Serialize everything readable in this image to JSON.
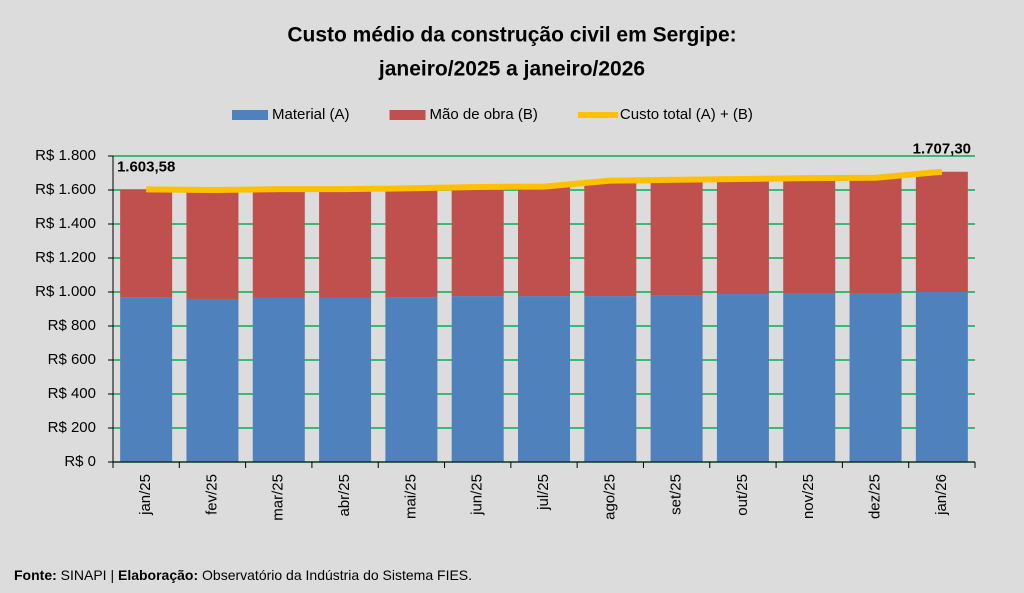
{
  "chart_data": {
    "type": "bar",
    "stacked": true,
    "title": [
      "Custo médio da construção civil em Sergipe:",
      "janeiro/2025 a janeiro/2026"
    ],
    "categories": [
      "jan/25",
      "fev/25",
      "mar/25",
      "abr/25",
      "mai/25",
      "jun/25",
      "jul/25",
      "ago/25",
      "set/25",
      "out/25",
      "nov/25",
      "dez/25",
      "jan/26"
    ],
    "series": [
      {
        "name": "Material (A)",
        "type": "bar",
        "color": "#4f81bd",
        "values": [
          970,
          959,
          965,
          965,
          970,
          976,
          976,
          976,
          982,
          988,
          994,
          994,
          1000
        ]
      },
      {
        "name": "Mão de obra (B)",
        "type": "bar",
        "color": "#c0504d",
        "values": [
          633.58,
          641,
          640,
          640,
          640,
          642,
          644,
          679,
          678,
          677,
          676,
          678,
          707.3
        ]
      },
      {
        "name": "Custo total (A) + (B)",
        "type": "line",
        "color": "#ffc000",
        "values": [
          1603.58,
          1600,
          1605,
          1605,
          1610,
          1618,
          1620,
          1655,
          1660,
          1665,
          1670,
          1672,
          1707.3
        ],
        "value_labels": [
          "1.603,58",
          null,
          null,
          null,
          null,
          null,
          null,
          null,
          null,
          null,
          null,
          null,
          "1.707,30"
        ]
      }
    ],
    "ylim": [
      0,
      1800
    ],
    "yticks": [
      {
        "value": 0,
        "label": "R$ 0"
      },
      {
        "value": 200,
        "label": "R$ 200"
      },
      {
        "value": 400,
        "label": "R$ 400"
      },
      {
        "value": 600,
        "label": "R$ 600"
      },
      {
        "value": 800,
        "label": "R$ 800"
      },
      {
        "value": 1000,
        "label": "R$ 1.000"
      },
      {
        "value": 1200,
        "label": "R$ 1.200"
      },
      {
        "value": 1400,
        "label": "R$ 1.400"
      },
      {
        "value": 1600,
        "label": "R$ 1.600"
      },
      {
        "value": 1800,
        "label": "R$ 1.800"
      }
    ],
    "grid": true,
    "grid_color": "#00b050",
    "legend": "top"
  },
  "source": {
    "label1": "Fonte:",
    "text1": "SINAPI |",
    "label2": "Elaboração:",
    "text2": "Observatório da Indústria do Sistema FIES."
  }
}
